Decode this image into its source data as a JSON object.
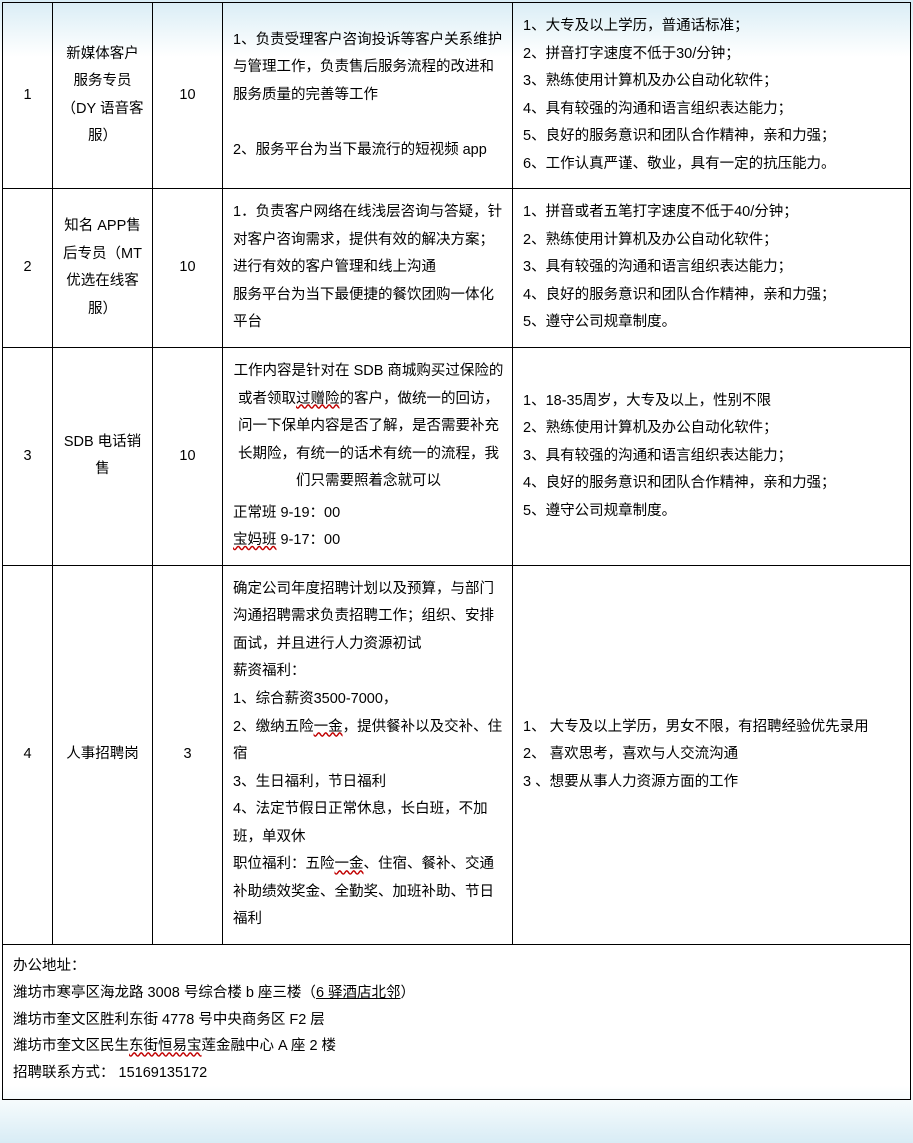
{
  "rows": [
    {
      "idx": "1",
      "position": "新媒体客户服务专员\n（DY 语音客服）",
      "count": "10",
      "duty": "1、负责受理客户咨询投诉等客户关系维护与管理工作，负责售后服务流程的改进和服务质量的完善等工作\n\n2、服务平台为当下最流行的短视频 app",
      "req": "1、大专及以上学历，普通话标准；\n2、拼音打字速度不低于30/分钟；\n3、熟练使用计算机及办公自动化软件；\n4、具有较强的沟通和语言组织表达能力；\n5、良好的服务意识和团队合作精神，亲和力强；\n6、工作认真严谨、敬业，具有一定的抗压能力。"
    },
    {
      "idx": "2",
      "position": "知名 APP售后专员（MT 优选在线客服）",
      "count": "10",
      "duty": "1．负责客户网络在线浅层咨询与答疑，针对客户咨询需求，提供有效的解决方案；进行有效的客户管理和线上沟通\n服务平台为当下最便捷的餐饮团购一体化平台",
      "req": "1、拼音或者五笔打字速度不低于40/分钟；\n2、熟练使用计算机及办公自动化软件；\n3、具有较强的沟通和语言组织表达能力；\n4、良好的服务意识和团队合作精神，亲和力强；\n5、遵守公司规章制度。"
    },
    {
      "idx": "3",
      "position": "SDB 电话销售",
      "count": "10",
      "duty_main": "工作内容是针对在 SDB 商城购买过保险的或者领取{wavy:过赠险}的客户，做统一的回访，问一下保单内容是否了解，是否需要补充长期险，有统一的话术有统一的流程，我们只需要照着念就可以",
      "duty_tail": "正常班 9-19：00\n{wavy:宝妈班} 9-17：00",
      "req": "1、18-35周岁，大专及以上，性别不限\n2、熟练使用计算机及办公自动化软件；\n3、具有较强的沟通和语言组织表达能力；\n4、良好的服务意识和团队合作精神，亲和力强；\n5、遵守公司规章制度。"
    },
    {
      "idx": "4",
      "position": "人事招聘岗",
      "count": "3",
      "duty": "确定公司年度招聘计划以及预算，与部门沟通招聘需求负责招聘工作；组织、安排面试，并且进行人力资源初试\n薪资福利：\n1、综合薪资3500-7000，\n2、缴纳五险{wavy:一金}，提供餐补以及交补、住宿\n3、生日福利，节日福利\n4、法定节假日正常休息，长白班，不加班，单双休\n职位福利：五险{wavy:一金}、住宿、餐补、交通补助绩效奖金、全勤奖、加班补助、节日福利",
      "req": "1、 大专及以上学历，男女不限，有招聘经验优先录用\n2、 喜欢思考，喜欢与人交流沟通\n3 、想要从事人力资源方面的工作"
    }
  ],
  "footer": {
    "lines": [
      "办公地址：",
      "潍坊市寒亭区海龙路 3008 号综合楼 b 座三楼（{under:6 驿酒店北邻}）",
      "潍坊市奎文区胜利东街 4778 号中央商务区 F2 层",
      "潍坊市奎文区民生{wavy:东街恒易宝}莲金融中心 A 座 2 楼",
      "招聘联系方式： 15169135172"
    ]
  }
}
